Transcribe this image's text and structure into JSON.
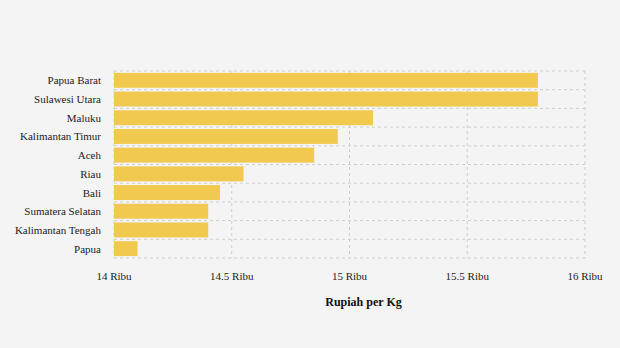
{
  "chart_data": {
    "type": "bar",
    "orientation": "horizontal",
    "categories": [
      "Papua Barat",
      "Sulawesi Utara",
      "Maluku",
      "Kalimantan Timur",
      "Aceh",
      "Riau",
      "Bali",
      "Sumatera Selatan",
      "Kalimantan Tengah",
      "Papua"
    ],
    "values": [
      15800,
      15800,
      15100,
      14950,
      14850,
      14550,
      14450,
      14400,
      14400,
      14100
    ],
    "color": "#f2c94f",
    "x_label": "Rupiah per Kg",
    "xlim": [
      14000,
      16000
    ],
    "xticks": [
      {
        "value": 14000,
        "label": "14 Ribu"
      },
      {
        "value": 14500,
        "label": "14.5 Ribu"
      },
      {
        "value": 15000,
        "label": "15 Ribu"
      },
      {
        "value": 15500,
        "label": "15.5 Ribu"
      },
      {
        "value": 16000,
        "label": "16 Ribu"
      }
    ],
    "grid": true
  }
}
